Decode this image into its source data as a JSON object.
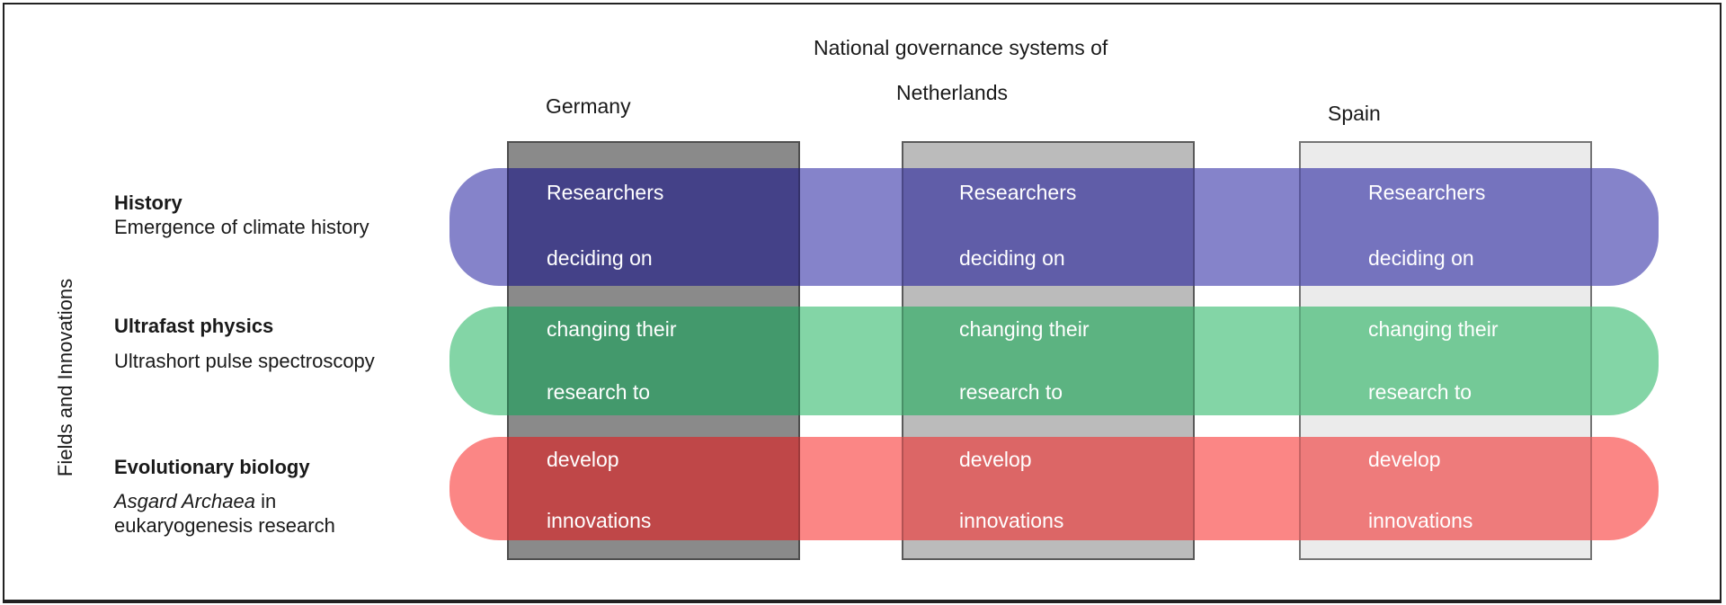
{
  "figure": {
    "title": "National governance systems of",
    "y_axis_label": "Fields and Innovations"
  },
  "columns": [
    {
      "id": "germany",
      "label": "Germany"
    },
    {
      "id": "netherlands",
      "label": "Netherlands"
    },
    {
      "id": "spain",
      "label": "Spain"
    }
  ],
  "rows": [
    {
      "id": "history",
      "label": "History",
      "sublabel": "Emergence of climate history",
      "cell_lines": [
        "Researchers",
        "deciding on"
      ]
    },
    {
      "id": "ultrafast-physics",
      "label": "Ultrafast physics",
      "sublabel": "Ultrashort pulse spectroscopy",
      "cell_lines": [
        "changing their",
        "research to"
      ]
    },
    {
      "id": "evolutionary-biology",
      "label": "Evolutionary biology",
      "sublabel_italic": "Asgard Archaea",
      "sublabel_after_italic": " in",
      "sublabel_line2": "eukaryogenesis research",
      "cell_lines": [
        "develop",
        "innovations"
      ]
    }
  ],
  "colors": {
    "frame": "#222222",
    "cell_text": "#ffffff",
    "label_text": "#1a1a1a",
    "bars": {
      "history": "#8583CA",
      "physics": "#83D5A6",
      "biology": "#FB8685"
    },
    "columns": {
      "germany": {
        "fill": "#8A8A8A",
        "border": "#4E4E4E"
      },
      "netherlands": {
        "fill": "#BBBBBB",
        "border": "#5A5A5A"
      },
      "spain": {
        "fill": "#EBEBEB",
        "border": "#757575"
      }
    },
    "cells": {
      "history": {
        "germany": "#444188",
        "netherlands": "#605DA8",
        "spain": "#7573BE"
      },
      "physics": {
        "germany": "#43996C",
        "netherlands": "#5CB381",
        "spain": "#74C997"
      },
      "biology": {
        "germany": "#BF4748",
        "netherlands": "#DC6666",
        "spain": "#EE7B7B"
      }
    },
    "cell_borders": {
      "history": {
        "germany": "#34326A",
        "netherlands": "#4B4886",
        "spain": "#5A5899"
      },
      "physics": {
        "germany": "#357A56",
        "netherlands": "#489067",
        "spain": "#5DA67C"
      },
      "biology": {
        "germany": "#9E3A3B",
        "netherlands": "#B35253",
        "spain": "#C66464"
      }
    }
  }
}
